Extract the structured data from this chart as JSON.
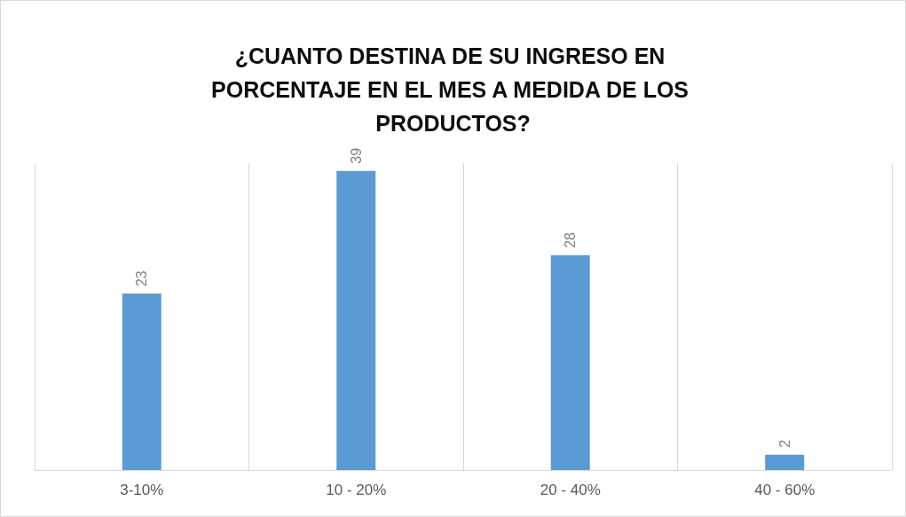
{
  "chart_data": {
    "type": "bar",
    "title": "¿CUANTO DESTINA DE SU INGRESO EN PORCENTAJE EN EL MES A MEDIDA DE LOS PRODUCTOS?",
    "categories": [
      "3-10%",
      "10 - 20%",
      "20 - 40%",
      "40 - 60%"
    ],
    "values": [
      23,
      39,
      28,
      2
    ],
    "color": "#5b9bd5",
    "data_labels": true,
    "grid": "x",
    "tick_labels": "x"
  }
}
